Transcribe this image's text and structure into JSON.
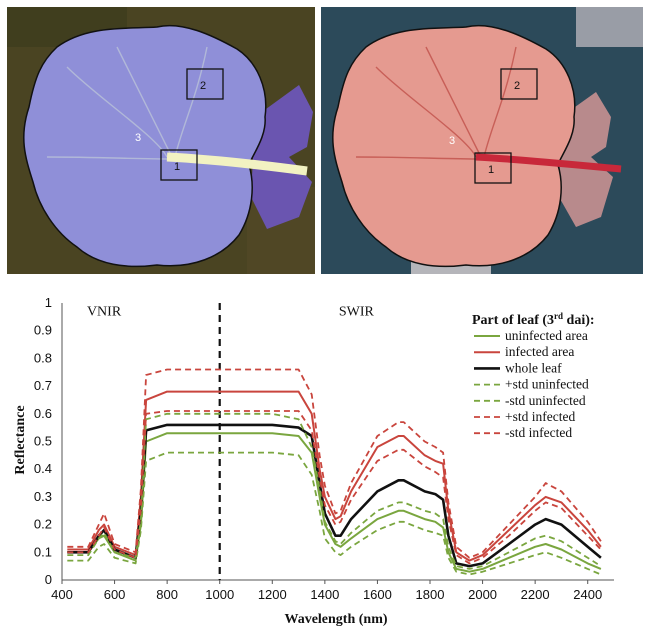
{
  "images": {
    "left": {
      "kind": "VNIR false-colour hyperspectral leaf image",
      "colors": {
        "background": "#4a4422",
        "leaf": "#8f8fd8",
        "outline": "#111111"
      },
      "markers": [
        {
          "id": "box1",
          "label": "1"
        },
        {
          "id": "box2",
          "label": "2"
        },
        {
          "id": "point3",
          "label": "3"
        }
      ]
    },
    "right": {
      "kind": "SWIR false-colour hyperspectral leaf image",
      "colors": {
        "background": "#2c4a5a",
        "leaf": "#e59a90",
        "outline": "#111111"
      },
      "markers": [
        {
          "id": "box1",
          "label": "1"
        },
        {
          "id": "box2",
          "label": "2"
        },
        {
          "id": "point3",
          "label": "3"
        }
      ]
    }
  },
  "chart_data": {
    "type": "line",
    "title": "",
    "xlabel": "Wavelength (nm)",
    "ylabel": "Reflectance",
    "xlim": [
      400,
      2500
    ],
    "ylim": [
      0,
      1
    ],
    "xticks": [
      400,
      600,
      800,
      1000,
      1200,
      1400,
      1600,
      1800,
      2000,
      2200,
      2400
    ],
    "yticks": [
      "0",
      "0.1",
      "0.2",
      "0.3",
      "0.4",
      "0.5",
      "0.6",
      "0.7",
      "0.8",
      "0.9",
      "1"
    ],
    "grid": false,
    "vline": {
      "x": 1000,
      "style": "dashed"
    },
    "regions": [
      {
        "label": "VNIR",
        "x": 560,
        "y": 0.955
      },
      {
        "label": "SWIR",
        "x": 1520,
        "y": 0.955
      }
    ],
    "legend": {
      "title": "Part of leaf (3rd dai):",
      "title_main": "Part of leaf (3",
      "title_sup": "rd",
      "title_end": " dai):",
      "placement": "top-right"
    },
    "x": [
      420,
      500,
      540,
      560,
      600,
      680,
      700,
      720,
      800,
      1000,
      1200,
      1300,
      1350,
      1380,
      1400,
      1440,
      1460,
      1500,
      1600,
      1680,
      1700,
      1780,
      1820,
      1850,
      1870,
      1900,
      1950,
      2000,
      2100,
      2200,
      2240,
      2300,
      2400,
      2450
    ],
    "series": [
      {
        "name": "uninfected area",
        "color": "#7aa63f",
        "dash": false,
        "width": 2,
        "values": [
          0.1,
          0.1,
          0.15,
          0.16,
          0.1,
          0.07,
          0.2,
          0.5,
          0.53,
          0.53,
          0.53,
          0.52,
          0.46,
          0.3,
          0.2,
          0.13,
          0.12,
          0.15,
          0.22,
          0.25,
          0.25,
          0.22,
          0.21,
          0.19,
          0.1,
          0.04,
          0.03,
          0.04,
          0.08,
          0.12,
          0.13,
          0.11,
          0.06,
          0.04
        ]
      },
      {
        "name": "infected area",
        "color": "#c9453d",
        "dash": false,
        "width": 2,
        "values": [
          0.11,
          0.11,
          0.18,
          0.2,
          0.12,
          0.09,
          0.3,
          0.65,
          0.68,
          0.68,
          0.68,
          0.68,
          0.6,
          0.4,
          0.3,
          0.22,
          0.23,
          0.32,
          0.48,
          0.52,
          0.52,
          0.45,
          0.43,
          0.42,
          0.25,
          0.1,
          0.07,
          0.09,
          0.18,
          0.27,
          0.3,
          0.28,
          0.18,
          0.12
        ]
      },
      {
        "name": "whole leaf",
        "color": "#111111",
        "dash": false,
        "width": 2.6,
        "values": [
          0.1,
          0.1,
          0.16,
          0.18,
          0.11,
          0.08,
          0.25,
          0.54,
          0.56,
          0.56,
          0.56,
          0.55,
          0.52,
          0.35,
          0.24,
          0.16,
          0.16,
          0.22,
          0.32,
          0.36,
          0.36,
          0.32,
          0.31,
          0.29,
          0.16,
          0.06,
          0.05,
          0.06,
          0.13,
          0.2,
          0.22,
          0.2,
          0.12,
          0.08
        ]
      },
      {
        "name": "+std uninfected",
        "color": "#7aa63f",
        "dash": true,
        "width": 1.8,
        "values": [
          0.09,
          0.09,
          0.15,
          0.17,
          0.1,
          0.08,
          0.22,
          0.58,
          0.6,
          0.6,
          0.6,
          0.58,
          0.48,
          0.33,
          0.21,
          0.14,
          0.13,
          0.17,
          0.25,
          0.28,
          0.28,
          0.25,
          0.24,
          0.22,
          0.12,
          0.05,
          0.04,
          0.05,
          0.1,
          0.15,
          0.16,
          0.14,
          0.08,
          0.05
        ]
      },
      {
        "name": "-std uninfected",
        "color": "#7aa63f",
        "dash": true,
        "width": 1.8,
        "values": [
          0.07,
          0.07,
          0.12,
          0.13,
          0.08,
          0.06,
          0.18,
          0.43,
          0.46,
          0.46,
          0.46,
          0.45,
          0.38,
          0.25,
          0.15,
          0.1,
          0.09,
          0.12,
          0.18,
          0.21,
          0.21,
          0.18,
          0.17,
          0.16,
          0.08,
          0.03,
          0.02,
          0.03,
          0.06,
          0.09,
          0.1,
          0.08,
          0.04,
          0.02
        ]
      },
      {
        "name": "+std infected",
        "color": "#c9453d",
        "dash": true,
        "width": 1.8,
        "values": [
          0.12,
          0.12,
          0.2,
          0.24,
          0.13,
          0.1,
          0.33,
          0.74,
          0.76,
          0.76,
          0.76,
          0.76,
          0.67,
          0.45,
          0.34,
          0.24,
          0.25,
          0.35,
          0.52,
          0.57,
          0.57,
          0.5,
          0.48,
          0.46,
          0.28,
          0.12,
          0.08,
          0.1,
          0.2,
          0.3,
          0.35,
          0.32,
          0.21,
          0.14
        ]
      },
      {
        "name": "-std infected",
        "color": "#c9453d",
        "dash": true,
        "width": 1.8,
        "values": [
          0.1,
          0.1,
          0.16,
          0.19,
          0.11,
          0.08,
          0.26,
          0.6,
          0.61,
          0.61,
          0.61,
          0.61,
          0.54,
          0.37,
          0.27,
          0.2,
          0.21,
          0.29,
          0.43,
          0.47,
          0.47,
          0.41,
          0.39,
          0.37,
          0.22,
          0.09,
          0.06,
          0.08,
          0.16,
          0.25,
          0.28,
          0.26,
          0.16,
          0.11
        ]
      }
    ]
  }
}
